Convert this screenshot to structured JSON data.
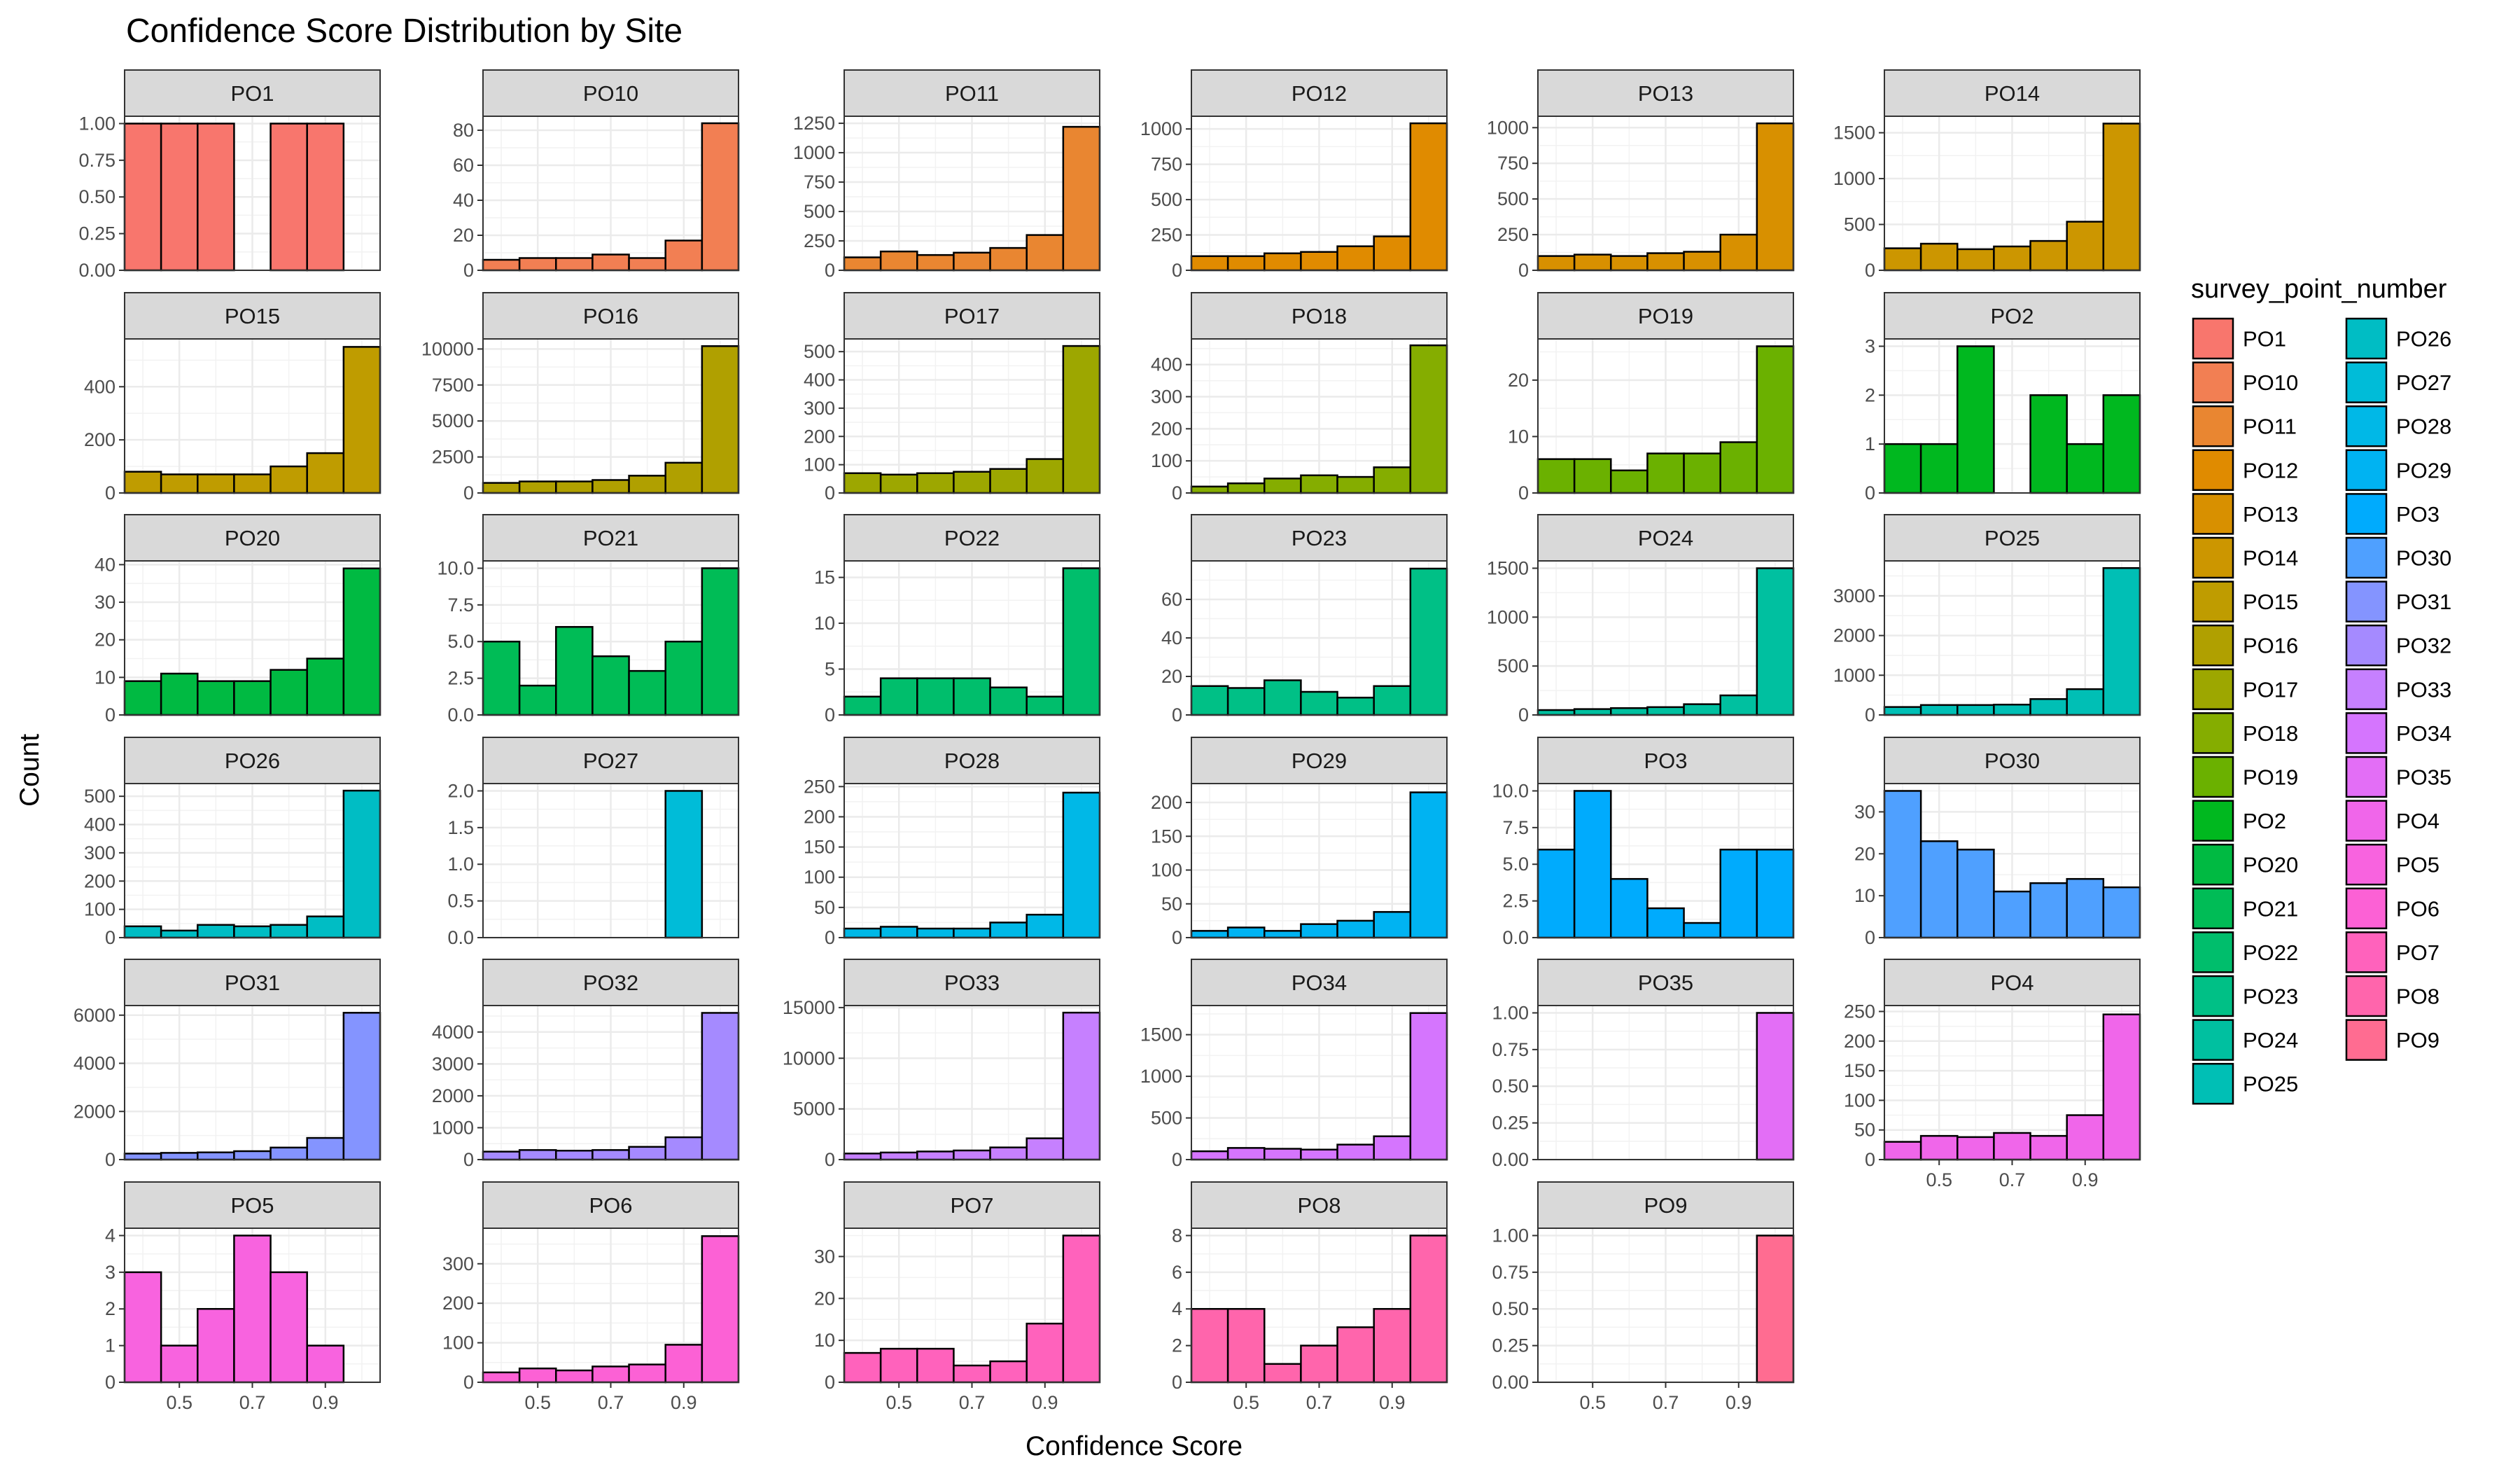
{
  "chart_data": {
    "type": "bar",
    "title": "Confidence Score Distribution by Site",
    "xlabel": "Confidence Score",
    "ylabel": "Count",
    "legend_title": "survey_point_number",
    "legend_position": "right",
    "grid": true,
    "xlim": [
      0.35,
      1.05
    ],
    "x_ticks": [
      0.5,
      0.7,
      0.9
    ],
    "x_tick_labels": [
      "0.5",
      "0.7",
      "0.9"
    ],
    "bin_centers": [
      0.4,
      0.5,
      0.6,
      0.7,
      0.8,
      0.9,
      1.0
    ],
    "panels": [
      {
        "name": "PO1",
        "color": "#F8766D",
        "ylim": [
          0,
          1.05
        ],
        "y_ticks": [
          0,
          0.25,
          0.5,
          0.75,
          1
        ],
        "y_tick_labels": [
          "0.00",
          "0.25",
          "0.50",
          "0.75",
          "1.00"
        ],
        "values": [
          1,
          1,
          1,
          0,
          1,
          1,
          0
        ]
      },
      {
        "name": "PO10",
        "color": "#F27F53",
        "ylim": [
          0,
          88
        ],
        "y_ticks": [
          0,
          20,
          40,
          60,
          80
        ],
        "y_tick_labels": [
          "0",
          "20",
          "40",
          "60",
          "80"
        ],
        "values": [
          6,
          7,
          7,
          9,
          7,
          17,
          84
        ]
      },
      {
        "name": "PO11",
        "color": "#E98631",
        "ylim": [
          0,
          1310
        ],
        "y_ticks": [
          0,
          250,
          500,
          750,
          1000,
          1250
        ],
        "y_tick_labels": [
          "0",
          "250",
          "500",
          "750",
          "1000",
          "1250"
        ],
        "values": [
          110,
          160,
          130,
          150,
          190,
          300,
          1220
        ]
      },
      {
        "name": "PO12",
        "color": "#E08B00",
        "ylim": [
          0,
          1090
        ],
        "y_ticks": [
          0,
          250,
          500,
          750,
          1000
        ],
        "y_tick_labels": [
          "0",
          "250",
          "500",
          "750",
          "1000"
        ],
        "values": [
          100,
          100,
          120,
          130,
          170,
          240,
          1040
        ]
      },
      {
        "name": "PO13",
        "color": "#D89000",
        "ylim": [
          0,
          1080
        ],
        "y_ticks": [
          0,
          250,
          500,
          750,
          1000
        ],
        "y_tick_labels": [
          "0",
          "250",
          "500",
          "750",
          "1000"
        ],
        "values": [
          100,
          110,
          100,
          120,
          130,
          250,
          1030
        ]
      },
      {
        "name": "PO14",
        "color": "#CC9600",
        "ylim": [
          0,
          1680
        ],
        "y_ticks": [
          0,
          500,
          1000,
          1500
        ],
        "y_tick_labels": [
          "0",
          "500",
          "1000",
          "1500"
        ],
        "values": [
          240,
          290,
          230,
          260,
          320,
          530,
          1600
        ]
      },
      {
        "name": "PO15",
        "color": "#BF9C00",
        "ylim": [
          0,
          580
        ],
        "y_ticks": [
          0,
          200,
          400
        ],
        "y_tick_labels": [
          "0",
          "200",
          "400"
        ],
        "values": [
          80,
          70,
          70,
          70,
          100,
          150,
          550
        ]
      },
      {
        "name": "PO16",
        "color": "#B0A000",
        "ylim": [
          0,
          10700
        ],
        "y_ticks": [
          0,
          2500,
          5000,
          7500,
          10000
        ],
        "y_tick_labels": [
          "0",
          "2500",
          "5000",
          "7500",
          "10000"
        ],
        "values": [
          700,
          800,
          800,
          900,
          1200,
          2100,
          10200
        ]
      },
      {
        "name": "PO17",
        "color": "#9DA700",
        "ylim": [
          0,
          545
        ],
        "y_ticks": [
          0,
          100,
          200,
          300,
          400,
          500
        ],
        "y_tick_labels": [
          "0",
          "100",
          "200",
          "300",
          "400",
          "500"
        ],
        "values": [
          70,
          65,
          70,
          75,
          85,
          120,
          520
        ]
      },
      {
        "name": "PO18",
        "color": "#85AD00",
        "ylim": [
          0,
          480
        ],
        "y_ticks": [
          0,
          100,
          200,
          300,
          400
        ],
        "y_tick_labels": [
          "0",
          "100",
          "200",
          "300",
          "400"
        ],
        "values": [
          20,
          30,
          45,
          55,
          50,
          80,
          460
        ]
      },
      {
        "name": "PO19",
        "color": "#6BB100",
        "ylim": [
          0,
          27.3
        ],
        "y_ticks": [
          0,
          10,
          20
        ],
        "y_tick_labels": [
          "0",
          "10",
          "20"
        ],
        "values": [
          6,
          6,
          4,
          7,
          7,
          9,
          26
        ]
      },
      {
        "name": "PO2",
        "color": "#00B81F",
        "ylim": [
          0,
          3.15
        ],
        "y_ticks": [
          0,
          1,
          2,
          3
        ],
        "y_tick_labels": [
          "0",
          "1",
          "2",
          "3"
        ],
        "values": [
          1,
          1,
          3,
          0,
          2,
          1,
          2
        ]
      },
      {
        "name": "PO20",
        "color": "#00BA42",
        "ylim": [
          0,
          41
        ],
        "y_ticks": [
          0,
          10,
          20,
          30,
          40
        ],
        "y_tick_labels": [
          "0",
          "10",
          "20",
          "30",
          "40"
        ],
        "values": [
          9,
          11,
          9,
          9,
          12,
          15,
          39
        ]
      },
      {
        "name": "PO21",
        "color": "#00BC56",
        "ylim": [
          0,
          10.5
        ],
        "y_ticks": [
          0,
          2.5,
          5,
          7.5,
          10
        ],
        "y_tick_labels": [
          "0.0",
          "2.5",
          "5.0",
          "7.5",
          "10.0"
        ],
        "values": [
          5,
          2,
          6,
          4,
          3,
          5,
          10
        ]
      },
      {
        "name": "PO22",
        "color": "#00BE6C",
        "ylim": [
          0,
          16.8
        ],
        "y_ticks": [
          0,
          5,
          10,
          15
        ],
        "y_tick_labels": [
          "0",
          "5",
          "10",
          "15"
        ],
        "values": [
          2,
          4,
          4,
          4,
          3,
          2,
          16
        ]
      },
      {
        "name": "PO23",
        "color": "#00C086",
        "ylim": [
          0,
          80
        ],
        "y_ticks": [
          0,
          20,
          40,
          60
        ],
        "y_tick_labels": [
          "0",
          "20",
          "40",
          "60"
        ],
        "values": [
          15,
          14,
          18,
          12,
          9,
          15,
          76
        ]
      },
      {
        "name": "PO24",
        "color": "#00C0A0",
        "ylim": [
          0,
          1575
        ],
        "y_ticks": [
          0,
          500,
          1000,
          1500
        ],
        "y_tick_labels": [
          "0",
          "500",
          "1000",
          "1500"
        ],
        "values": [
          50,
          60,
          70,
          80,
          110,
          200,
          1500
        ]
      },
      {
        "name": "PO25",
        "color": "#00BFB5",
        "ylim": [
          0,
          3880
        ],
        "y_ticks": [
          0,
          1000,
          2000,
          3000
        ],
        "y_tick_labels": [
          "0",
          "1000",
          "2000",
          "3000"
        ],
        "values": [
          200,
          250,
          250,
          260,
          400,
          650,
          3700
        ]
      },
      {
        "name": "PO26",
        "color": "#00BDC4",
        "ylim": [
          0,
          545
        ],
        "y_ticks": [
          0,
          100,
          200,
          300,
          400,
          500
        ],
        "y_tick_labels": [
          "0",
          "100",
          "200",
          "300",
          "400",
          "500"
        ],
        "values": [
          40,
          25,
          45,
          40,
          45,
          75,
          520
        ]
      },
      {
        "name": "PO27",
        "color": "#00BCD8",
        "ylim": [
          0,
          2.1
        ],
        "y_ticks": [
          0,
          0.5,
          1,
          1.5,
          2
        ],
        "y_tick_labels": [
          "0.0",
          "0.5",
          "1.0",
          "1.5",
          "2.0"
        ],
        "values": [
          0,
          0,
          0,
          0,
          0,
          2,
          0
        ]
      },
      {
        "name": "PO28",
        "color": "#00B8E7",
        "ylim": [
          0,
          255
        ],
        "y_ticks": [
          0,
          50,
          100,
          150,
          200,
          250
        ],
        "y_tick_labels": [
          "0",
          "50",
          "100",
          "150",
          "200",
          "250"
        ],
        "values": [
          15,
          18,
          15,
          15,
          25,
          38,
          240
        ]
      },
      {
        "name": "PO29",
        "color": "#00B3F2",
        "ylim": [
          0,
          228
        ],
        "y_ticks": [
          0,
          50,
          100,
          150,
          200
        ],
        "y_tick_labels": [
          "0",
          "50",
          "100",
          "150",
          "200"
        ],
        "values": [
          10,
          15,
          10,
          20,
          25,
          38,
          215
        ]
      },
      {
        "name": "PO3",
        "color": "#00ABFD",
        "ylim": [
          0,
          10.5
        ],
        "y_ticks": [
          0,
          2.5,
          5,
          7.5,
          10
        ],
        "y_tick_labels": [
          "0.0",
          "2.5",
          "5.0",
          "7.5",
          "10.0"
        ],
        "values": [
          6,
          10,
          4,
          2,
          1,
          6,
          6
        ]
      },
      {
        "name": "PO30",
        "color": "#4FA0FF",
        "ylim": [
          0,
          36.75
        ],
        "y_ticks": [
          0,
          10,
          20,
          30
        ],
        "y_tick_labels": [
          "0",
          "10",
          "20",
          "30"
        ],
        "values": [
          35,
          23,
          21,
          11,
          13,
          14,
          12
        ]
      },
      {
        "name": "PO31",
        "color": "#8494FF",
        "ylim": [
          0,
          6400
        ],
        "y_ticks": [
          0,
          2000,
          4000,
          6000
        ],
        "y_tick_labels": [
          "0",
          "2000",
          "4000",
          "6000"
        ],
        "values": [
          250,
          280,
          300,
          350,
          500,
          900,
          6100
        ]
      },
      {
        "name": "PO32",
        "color": "#A58AFF",
        "ylim": [
          0,
          4830
        ],
        "y_ticks": [
          0,
          1000,
          2000,
          3000,
          4000
        ],
        "y_tick_labels": [
          "0",
          "1000",
          "2000",
          "3000",
          "4000"
        ],
        "values": [
          250,
          300,
          280,
          300,
          400,
          700,
          4600
        ]
      },
      {
        "name": "PO33",
        "color": "#C680FF",
        "ylim": [
          0,
          15200
        ],
        "y_ticks": [
          0,
          5000,
          10000,
          15000
        ],
        "y_tick_labels": [
          "0",
          "5000",
          "10000",
          "15000"
        ],
        "values": [
          600,
          700,
          800,
          900,
          1200,
          2100,
          14500
        ]
      },
      {
        "name": "PO34",
        "color": "#D575FE",
        "ylim": [
          0,
          1850
        ],
        "y_ticks": [
          0,
          500,
          1000,
          1500
        ],
        "y_tick_labels": [
          "0",
          "500",
          "1000",
          "1500"
        ],
        "values": [
          100,
          140,
          130,
          120,
          180,
          280,
          1760
        ]
      },
      {
        "name": "PO35",
        "color": "#E36EF6",
        "ylim": [
          0,
          1.05
        ],
        "y_ticks": [
          0,
          0.25,
          0.5,
          0.75,
          1
        ],
        "y_tick_labels": [
          "0.00",
          "0.25",
          "0.50",
          "0.75",
          "1.00"
        ],
        "values": [
          0,
          0,
          0,
          0,
          0,
          0,
          1
        ]
      },
      {
        "name": "PO4",
        "color": "#F066EA",
        "ylim": [
          0,
          260
        ],
        "y_ticks": [
          0,
          50,
          100,
          150,
          200,
          250
        ],
        "y_tick_labels": [
          "0",
          "50",
          "100",
          "150",
          "200",
          "250"
        ],
        "values": [
          30,
          40,
          38,
          45,
          40,
          75,
          245
        ]
      },
      {
        "name": "PO5",
        "color": "#F863DF",
        "ylim": [
          0,
          4.2
        ],
        "y_ticks": [
          0,
          1,
          2,
          3,
          4
        ],
        "y_tick_labels": [
          "0",
          "1",
          "2",
          "3",
          "4"
        ],
        "values": [
          3,
          1,
          2,
          4,
          3,
          1,
          0
        ]
      },
      {
        "name": "PO6",
        "color": "#FC61D5",
        "ylim": [
          0,
          390
        ],
        "y_ticks": [
          0,
          100,
          200,
          300
        ],
        "y_tick_labels": [
          "0",
          "100",
          "200",
          "300"
        ],
        "values": [
          25,
          35,
          30,
          40,
          45,
          95,
          370
        ]
      },
      {
        "name": "PO7",
        "color": "#FF62BC",
        "ylim": [
          0,
          36.75
        ],
        "y_ticks": [
          0,
          10,
          20,
          30
        ],
        "y_tick_labels": [
          "0",
          "10",
          "20",
          "30"
        ],
        "values": [
          7,
          8,
          8,
          4,
          5,
          14,
          35
        ]
      },
      {
        "name": "PO8",
        "color": "#FF65AC",
        "ylim": [
          0,
          8.4
        ],
        "y_ticks": [
          0,
          2,
          4,
          6,
          8
        ],
        "y_tick_labels": [
          "0",
          "2",
          "4",
          "6",
          "8"
        ],
        "values": [
          4,
          4,
          1,
          2,
          3,
          4,
          8
        ]
      },
      {
        "name": "PO9",
        "color": "#FF6C91",
        "ylim": [
          0,
          1.05
        ],
        "y_ticks": [
          0,
          0.25,
          0.5,
          0.75,
          1
        ],
        "y_tick_labels": [
          "0.00",
          "0.25",
          "0.50",
          "0.75",
          "1.00"
        ],
        "values": [
          0,
          0,
          0,
          0,
          0,
          0,
          1
        ]
      }
    ],
    "legend": {
      "title": "survey_point_number",
      "columns": [
        [
          "PO1",
          "PO10",
          "PO11",
          "PO12",
          "PO13",
          "PO14",
          "PO15",
          "PO16",
          "PO17",
          "PO18",
          "PO19",
          "PO2",
          "PO20",
          "PO21",
          "PO22",
          "PO23",
          "PO24",
          "PO25"
        ],
        [
          "PO26",
          "PO27",
          "PO28",
          "PO29",
          "PO3",
          "PO30",
          "PO31",
          "PO32",
          "PO33",
          "PO34",
          "PO35",
          "PO4",
          "PO5",
          "PO6",
          "PO7",
          "PO8",
          "PO9"
        ]
      ]
    }
  }
}
